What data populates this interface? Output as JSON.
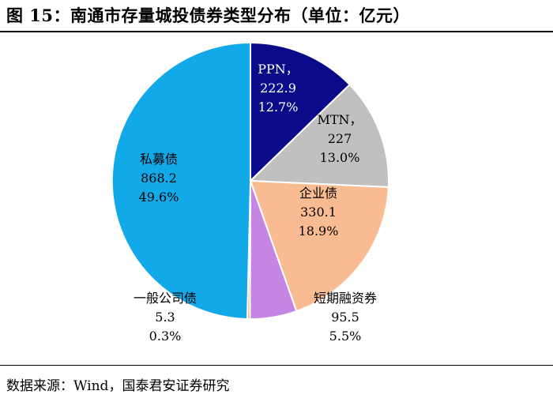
{
  "figure": {
    "title": "图 15：南通市存量城投债券类型分布（单位：亿元）",
    "source": "数据来源：Wind，国泰君安证券研究"
  },
  "chart_data": {
    "type": "pie",
    "unit": "亿元",
    "slices": [
      {
        "name": "PPN，",
        "value": 222.9,
        "value_text": "222.9",
        "pct_text": "12.7%",
        "color": "#0b0b8a"
      },
      {
        "name": "MTN，",
        "value": 227,
        "value_text": "227",
        "pct_text": "13.0%",
        "color": "#c0c0c0"
      },
      {
        "name": "企业债",
        "value": 330.1,
        "value_text": "330.1",
        "pct_text": "18.9%",
        "color": "#f9bb92"
      },
      {
        "name": "短期融资券",
        "value": 95.5,
        "value_text": "95.5",
        "pct_text": "5.5%",
        "color": "#c485e3"
      },
      {
        "name": "一般公司债",
        "value": 5.3,
        "value_text": "5.3",
        "pct_text": "0.3%",
        "color": "#f2a33a"
      },
      {
        "name": "私募债",
        "value": 868.2,
        "value_text": "868.2",
        "pct_text": "49.6%",
        "color": "#12a9e8"
      }
    ]
  }
}
